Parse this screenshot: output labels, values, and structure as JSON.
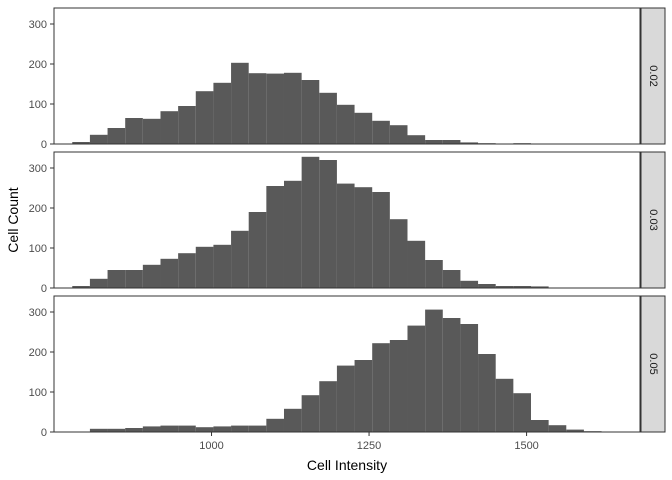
{
  "chart_data": {
    "type": "bar",
    "subtype": "faceted-histogram",
    "xlabel": "Cell Intensity",
    "ylabel": "Cell Count",
    "xlim": [
      750,
      1680
    ],
    "ylim": [
      0,
      340
    ],
    "x_ticks": [
      1000,
      1250,
      1500
    ],
    "y_ticks": [
      0,
      100,
      200,
      300
    ],
    "bin_width": 28,
    "bar_color": "#595959",
    "panel_border": "#333333",
    "strip_fill": "#d9d9d9",
    "strip_position": "right",
    "grid": false,
    "facets": [
      {
        "label": "0.02",
        "bin_start": 779,
        "counts": [
          5,
          23,
          40,
          65,
          63,
          82,
          95,
          132,
          153,
          203,
          177,
          176,
          178,
          160,
          128,
          98,
          78,
          58,
          47,
          22,
          10,
          10,
          4,
          2,
          0,
          2
        ]
      },
      {
        "label": "0.03",
        "bin_start": 779,
        "counts": [
          5,
          23,
          45,
          45,
          58,
          73,
          87,
          103,
          108,
          143,
          190,
          255,
          268,
          328,
          320,
          261,
          252,
          240,
          172,
          118,
          70,
          45,
          18,
          10,
          5,
          5,
          4
        ]
      },
      {
        "label": "0.05",
        "bin_start": 807,
        "counts": [
          8,
          8,
          10,
          14,
          16,
          16,
          12,
          14,
          16,
          16,
          33,
          58,
          92,
          127,
          166,
          180,
          222,
          230,
          266,
          306,
          285,
          270,
          195,
          133,
          97,
          30,
          17,
          6,
          2
        ]
      }
    ]
  }
}
